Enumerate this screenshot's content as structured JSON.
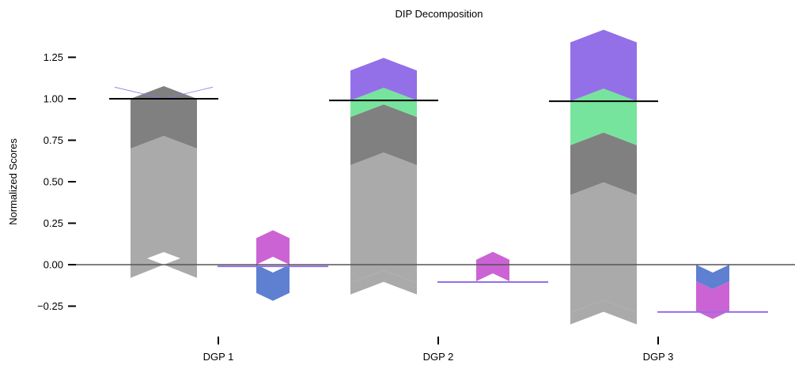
{
  "chart_data": {
    "type": "bar",
    "title": "DIP Decomposition",
    "xlabel": "",
    "ylabel": "Normalized Scores",
    "ylim": [
      -0.4,
      1.42
    ],
    "grid": false,
    "legend": "none",
    "y_ticks": [
      "−0.25",
      "0.00",
      "0.25",
      "0.50",
      "0.75",
      "1.00",
      "1.25"
    ],
    "y_tick_values": [
      -0.25,
      0,
      0.25,
      0.5,
      0.75,
      1.0,
      1.25
    ],
    "categories": [
      "DGP 1",
      "DGP 2",
      "DGP 3"
    ],
    "colors": {
      "light_gray": "#aaaaaa",
      "dark_gray": "#808080",
      "green": "#77e49d",
      "purple": "#9370e8",
      "magenta": "#cc63d4",
      "blue": "#5f80d0",
      "total_line": "#000000",
      "baseline": "#555555",
      "right_line": "#9370e8"
    },
    "groups": [
      {
        "category": "DGP 1",
        "total": 1.0,
        "right_total": -0.01,
        "left_segments": [
          {
            "color_key": "light_gray",
            "from": 0.0,
            "to": 0.7,
            "notch_down": -0.08
          },
          {
            "color_key": "dark_gray",
            "from": 0.7,
            "to": 1.0
          },
          {
            "color_key": "purple",
            "from": 1.0,
            "to": 1.07,
            "thin": true
          }
        ],
        "right_segments": [
          {
            "color_key": "magenta",
            "from": 0.0,
            "to": 0.16
          },
          {
            "color_key": "blue",
            "from": 0.0,
            "to": -0.17
          }
        ]
      },
      {
        "category": "DGP 2",
        "total": 0.99,
        "right_total": -0.105,
        "left_segments": [
          {
            "color_key": "light_gray",
            "from": -0.11,
            "to": 0.6,
            "notch_down": -0.18
          },
          {
            "color_key": "dark_gray",
            "from": 0.6,
            "to": 0.89
          },
          {
            "color_key": "green",
            "from": 0.89,
            "to": 0.99
          },
          {
            "color_key": "purple",
            "from": 0.99,
            "to": 1.17
          }
        ],
        "right_segments": [
          {
            "color_key": "magenta",
            "from": -0.1,
            "to": 0.03
          }
        ]
      },
      {
        "category": "DGP 3",
        "total": 0.985,
        "right_total": -0.285,
        "left_segments": [
          {
            "color_key": "light_gray",
            "from": -0.29,
            "to": 0.42,
            "notch_down": -0.36
          },
          {
            "color_key": "dark_gray",
            "from": 0.42,
            "to": 0.72
          },
          {
            "color_key": "green",
            "from": 0.72,
            "to": 0.985
          },
          {
            "color_key": "purple",
            "from": 0.985,
            "to": 1.34
          }
        ],
        "right_segments": [
          {
            "color_key": "blue",
            "from": 0.0,
            "to": -0.1
          },
          {
            "color_key": "magenta",
            "from": -0.1,
            "to": -0.28
          }
        ]
      }
    ]
  }
}
